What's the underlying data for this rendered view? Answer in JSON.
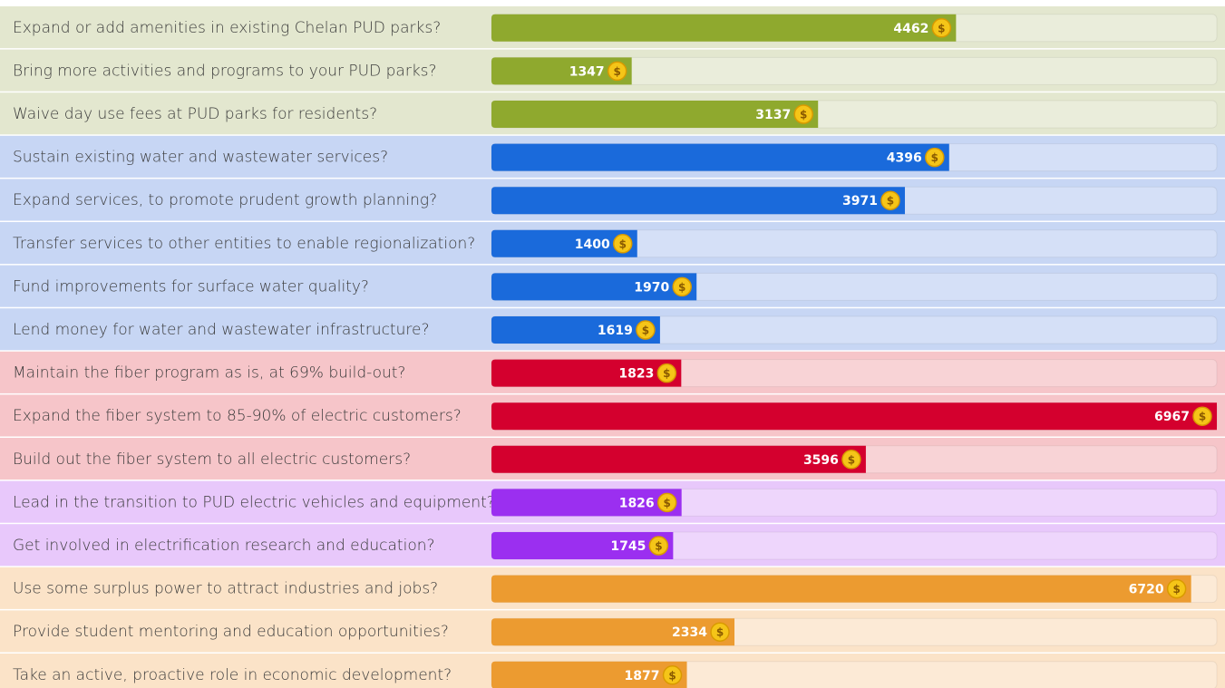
{
  "chart_data": {
    "type": "bar",
    "categories": [
      "Expand or add amenities in existing Chelan PUD parks?",
      "Bring more activities and programs to your PUD parks?",
      "Waive day use fees at PUD parks for residents?",
      "Sustain existing water and wastewater services?",
      "Expand services, to promote prudent growth planning?",
      "Transfer services to other entities to enable regionalization?",
      "Fund improvements for surface water quality?",
      "Lend money for water and wastewater infrastructure?",
      "Maintain the fiber program as is, at 69% build-out?",
      "Expand the fiber system to 85-90% of electric customers?",
      "Build out the fiber system to all electric customers?",
      "Lead in the transition to PUD electric vehicles and equipment?",
      "Get involved in electrification research and education?",
      "Use some surplus power to attract industries and jobs?",
      "Provide student mentoring and education opportunities?",
      "Take an active, proactive role in economic development?"
    ],
    "values": [
      4462,
      1347,
      3137,
      4396,
      3971,
      1400,
      1970,
      1619,
      1823,
      6967,
      3596,
      1826,
      1745,
      6720,
      2334,
      1877
    ],
    "colors": [
      "#8fa92e",
      "#8fa92e",
      "#8fa92e",
      "#1a6adb",
      "#1a6adb",
      "#1a6adb",
      "#1a6adb",
      "#1a6adb",
      "#d4002e",
      "#d4002e",
      "#d4002e",
      "#9b2ff0",
      "#9b2ff0",
      "#ec9b30",
      "#ec9b30",
      "#ec9b30"
    ],
    "row_colors": [
      "#e3e7cf",
      "#e3e7cf",
      "#e3e7cf",
      "#c7d6f4",
      "#c7d6f4",
      "#c7d6f4",
      "#c7d6f4",
      "#c7d6f4",
      "#f6c5c9",
      "#f6c5c9",
      "#f6c5c9",
      "#e8c8fb",
      "#e8c8fb",
      "#fbe3c8",
      "#fbe3c8",
      "#fbe3c8"
    ],
    "currency_symbol": "$"
  }
}
